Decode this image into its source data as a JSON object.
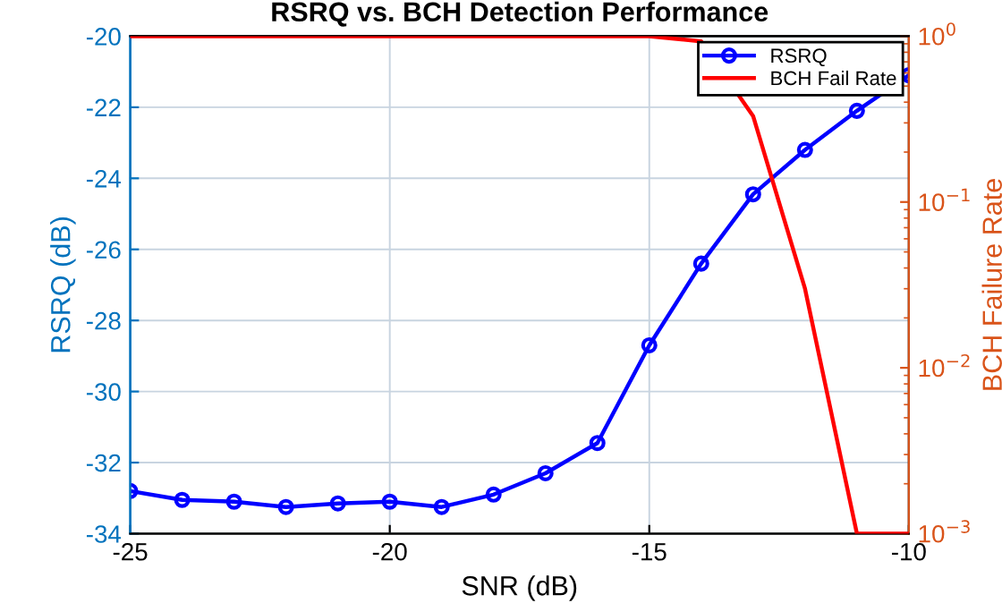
{
  "chart_data": {
    "type": "line",
    "title": "RSRQ vs. BCH Detection Performance",
    "xlabel": "SNR (dB)",
    "ylabel": "RSRQ (dB)",
    "y2label": "BCH Failure Rate",
    "x": [
      -25,
      -24,
      -23,
      -22,
      -21,
      -20,
      -19,
      -18,
      -17,
      -16,
      -15,
      -14,
      -13,
      -12,
      -11,
      -10
    ],
    "series": [
      {
        "name": "RSRQ",
        "color": "#0000ff",
        "marker": "circle",
        "values": [
          -32.8,
          -33.05,
          -33.1,
          -33.25,
          -33.15,
          -33.1,
          -33.25,
          -32.9,
          -32.3,
          -31.45,
          -28.7,
          -26.4,
          -24.45,
          -23.2,
          -22.1,
          -21.1
        ]
      },
      {
        "name": "BCH Fail Rate",
        "color": "#ff0000",
        "marker": "none",
        "axis": "y2",
        "values": [
          1,
          1,
          1,
          1,
          1,
          1,
          1,
          1,
          1,
          1,
          1,
          0.93,
          0.33,
          0.03,
          0.001,
          0.001
        ]
      }
    ],
    "xlim": [
      -25,
      -10
    ],
    "xticks": [
      -25,
      -20,
      -15,
      -10
    ],
    "ylim": [
      -34,
      -20
    ],
    "yticks": [
      -34,
      -32,
      -30,
      -28,
      -26,
      -24,
      -22,
      -20
    ],
    "log": "y2",
    "y2lim": [
      0.001,
      1
    ],
    "y2ticks": [
      {
        "value": 0.001,
        "label": "10$^{−3}$"
      },
      {
        "value": 0.01,
        "label": "10$^{−2}$"
      },
      {
        "value": 0.1,
        "label": "10$^{−1}$"
      },
      {
        "value": 1,
        "label": "10$^{0}$"
      }
    ],
    "grid": true,
    "legend": "top right",
    "line_style": "solid"
  }
}
